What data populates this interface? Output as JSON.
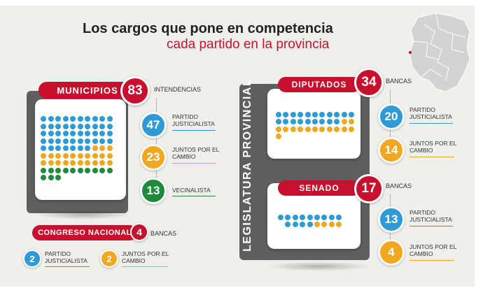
{
  "title": {
    "line1": "Los cargos que pone en competencia",
    "line2": "cada partido en la provincia"
  },
  "colors": {
    "red": "#c8102e",
    "blue": "#2e9bd6",
    "yellow": "#f0a821",
    "green": "#1e8a3a",
    "dark": "#5f5f5f"
  },
  "municipios": {
    "label": "MUNICIPIOS",
    "total": "83",
    "unit": "INTENDENCIAS",
    "parties": [
      {
        "count": "47",
        "name_l1": "PARTIDO",
        "name_l2": "JUSTICIALISTA",
        "color": "#2e9bd6"
      },
      {
        "count": "23",
        "name_l1": "JUNTOS POR EL",
        "name_l2": "CAMBIO",
        "color": "#f0a821"
      },
      {
        "count": "13",
        "name_l1": "VECINALISTA",
        "name_l2": "",
        "color": "#1e8a3a"
      }
    ]
  },
  "congreso": {
    "label": "CONGRESO NACIONAL",
    "total": "4",
    "unit": "BANCAS",
    "parties": [
      {
        "count": "2",
        "name_l1": "PARTIDO",
        "name_l2": "JUSTICIALISTA",
        "color": "#2e9bd6"
      },
      {
        "count": "2",
        "name_l1": "JUNTOS POR EL",
        "name_l2": "CAMBIO",
        "color": "#f0a821"
      }
    ]
  },
  "legislatura": {
    "label": "LEGISLATURA PROVINCIAL"
  },
  "diputados": {
    "label": "DIPUTADOS",
    "total": "34",
    "unit": "BANCAS",
    "parties": [
      {
        "count": "20",
        "name_l1": "PARTIDO",
        "name_l2": "JUSTICIALISTA",
        "color": "#2e9bd6"
      },
      {
        "count": "14",
        "name_l1": "JUNTOS POR EL",
        "name_l2": "CAMBIO",
        "color": "#f0a821"
      }
    ]
  },
  "senado": {
    "label": "SENADO",
    "total": "17",
    "unit": "BANCAS",
    "parties": [
      {
        "count": "13",
        "name_l1": "PARTIDO",
        "name_l2": "JUSTICIALISTA",
        "color": "#2e9bd6"
      },
      {
        "count": "4",
        "name_l1": "JUNTOS POR EL",
        "name_l2": "CAMBIO",
        "color": "#f0a821"
      }
    ]
  }
}
